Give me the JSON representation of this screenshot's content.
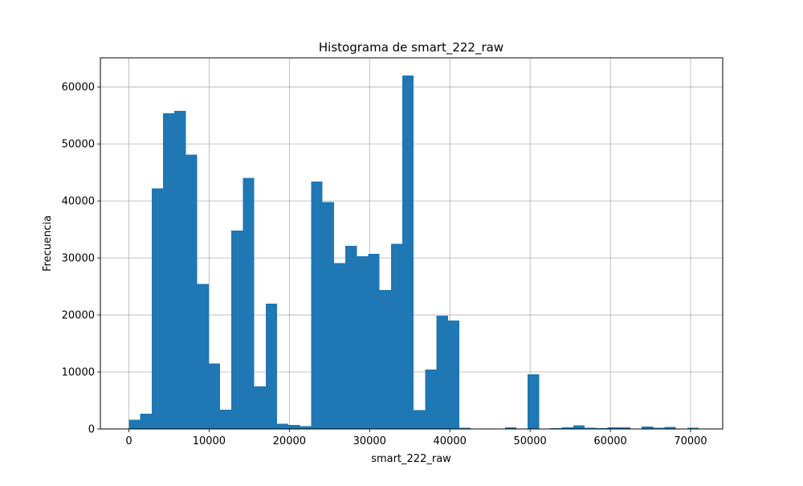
{
  "chart_data": {
    "type": "bar",
    "title": "Histograma de smart_222_raw",
    "xlabel": "smart_222_raw",
    "ylabel": "Frecuencia",
    "xlim": [
      -3550,
      74000
    ],
    "ylim": [
      0,
      65100
    ],
    "grid": true,
    "bar_color": "#1f77b4",
    "bin_start": 0,
    "bin_width": 1420,
    "x_ticks": [
      0,
      10000,
      20000,
      30000,
      40000,
      50000,
      60000,
      70000
    ],
    "x_tick_labels": [
      "0",
      "10000",
      "20000",
      "30000",
      "40000",
      "50000",
      "60000",
      "70000"
    ],
    "y_ticks": [
      0,
      10000,
      20000,
      30000,
      40000,
      50000,
      60000
    ],
    "y_tick_labels": [
      "0",
      "10000",
      "20000",
      "30000",
      "40000",
      "50000",
      "60000"
    ],
    "values": [
      1600,
      2700,
      42200,
      55400,
      55800,
      48100,
      25400,
      11500,
      3400,
      34800,
      44000,
      7500,
      22000,
      900,
      700,
      500,
      43400,
      39800,
      29100,
      32100,
      30300,
      30700,
      24400,
      32500,
      62000,
      3300,
      10400,
      19900,
      19000,
      200,
      0,
      0,
      0,
      300,
      0,
      9600,
      0,
      150,
      300,
      600,
      200,
      150,
      300,
      300,
      0,
      400,
      200,
      350,
      0,
      200
    ]
  }
}
